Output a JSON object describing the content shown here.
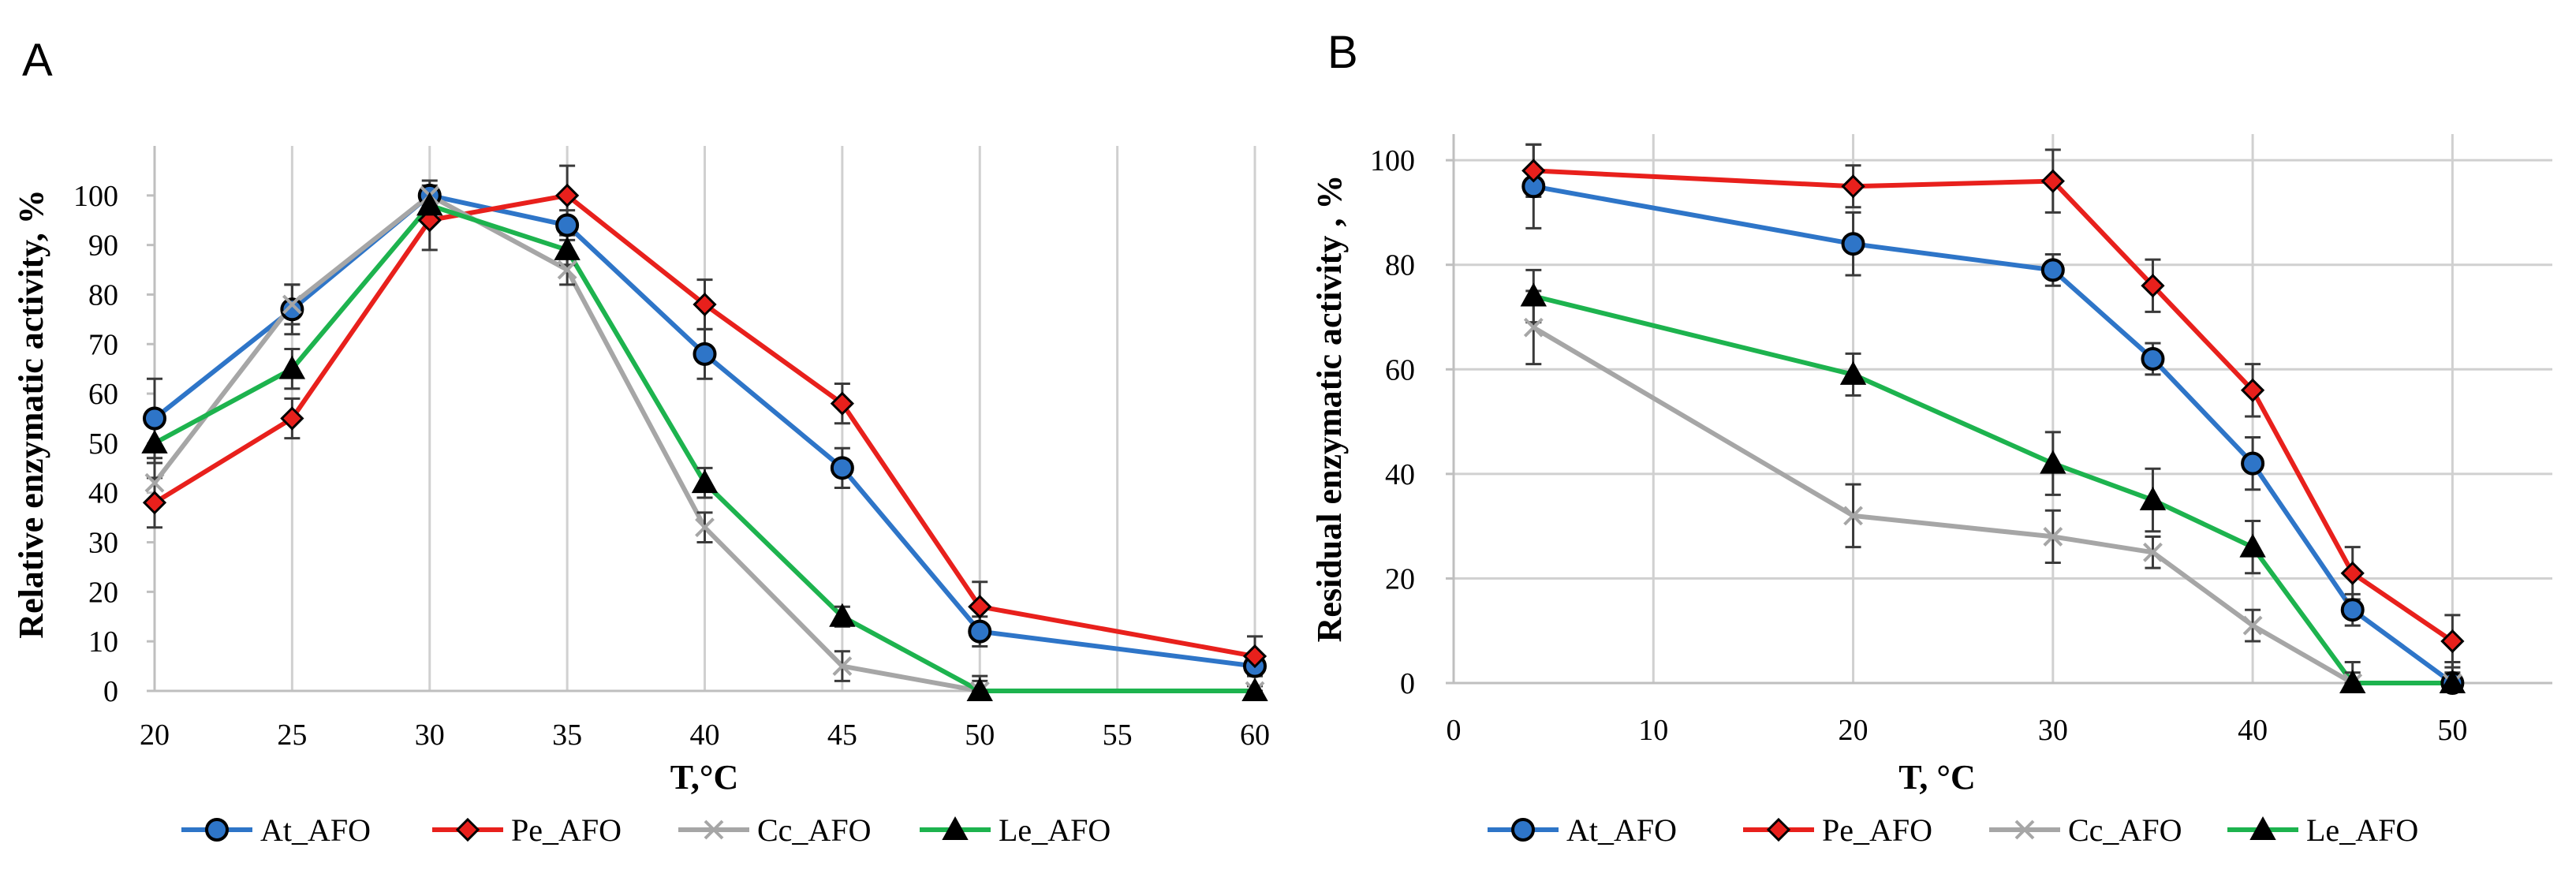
{
  "chart_data": [
    {
      "panel": "A",
      "type": "line",
      "x": [
        20,
        25,
        30,
        35,
        40,
        45,
        50,
        60
      ],
      "xlabel": "T,°C",
      "ylabel": "Relative enzymatic activity, %",
      "xlim": [
        20,
        60
      ],
      "ylim": [
        0,
        110
      ],
      "x_ticks": [
        20,
        25,
        30,
        35,
        40,
        45,
        50,
        55,
        60
      ],
      "y_ticks": [
        0,
        10,
        20,
        30,
        40,
        50,
        60,
        70,
        80,
        90,
        100
      ],
      "x_axis_type": "category",
      "grid": "vertical",
      "legend_position": "bottom",
      "series": [
        {
          "name": "At_AFO",
          "color": "#2E75C8",
          "marker": "circle",
          "values": [
            55,
            77,
            100,
            94,
            68,
            45,
            12,
            5
          ],
          "errors": [
            8,
            5,
            2,
            3,
            5,
            4,
            3,
            2
          ]
        },
        {
          "name": "Pe_AFO",
          "color": "#E8201C",
          "marker": "diamond",
          "values": [
            38,
            55,
            95,
            100,
            78,
            58,
            17,
            7
          ],
          "errors": [
            5,
            4,
            6,
            6,
            5,
            4,
            5,
            4
          ]
        },
        {
          "name": "Cc_AFO",
          "color": "#A6A6A6",
          "marker": "x",
          "values": [
            42,
            78,
            100,
            85,
            33,
            5,
            0,
            0
          ],
          "errors": [
            4,
            4,
            3,
            3,
            3,
            3,
            2,
            1
          ]
        },
        {
          "name": "Le_AFO",
          "color": "#1DB34E",
          "marker": "triangle",
          "values": [
            50,
            65,
            98,
            89,
            42,
            15,
            0,
            0
          ],
          "errors": [
            4,
            4,
            3,
            3,
            3,
            2,
            3,
            1
          ]
        }
      ]
    },
    {
      "panel": "B",
      "type": "line",
      "x": [
        4,
        20,
        30,
        35,
        40,
        45,
        50
      ],
      "xlabel": "T, °C",
      "ylabel": "Residual enzymatic activity , %",
      "xlim": [
        0,
        55
      ],
      "ylim": [
        0,
        105
      ],
      "x_ticks": [
        0,
        10,
        20,
        30,
        40,
        50
      ],
      "y_ticks": [
        0,
        20,
        40,
        60,
        80,
        100
      ],
      "x_axis_type": "linear",
      "grid": "both",
      "legend_position": "bottom",
      "series": [
        {
          "name": "At_AFO",
          "color": "#2E75C8",
          "marker": "circle",
          "values": [
            95,
            84,
            79,
            62,
            42,
            14,
            0
          ],
          "errors": [
            8,
            6,
            3,
            3,
            5,
            3,
            4
          ]
        },
        {
          "name": "Pe_AFO",
          "color": "#E8201C",
          "marker": "diamond",
          "values": [
            98,
            95,
            96,
            76,
            56,
            21,
            8
          ],
          "errors": [
            5,
            4,
            6,
            5,
            5,
            5,
            5
          ]
        },
        {
          "name": "Cc_AFO",
          "color": "#A6A6A6",
          "marker": "x",
          "values": [
            68,
            32,
            28,
            25,
            11,
            0,
            0
          ],
          "errors": [
            7,
            6,
            5,
            3,
            3,
            2,
            2
          ]
        },
        {
          "name": "Le_AFO",
          "color": "#1DB34E",
          "marker": "triangle",
          "values": [
            74,
            59,
            42,
            35,
            26,
            0,
            0
          ],
          "errors": [
            5,
            4,
            6,
            6,
            5,
            4,
            1
          ]
        }
      ]
    }
  ]
}
